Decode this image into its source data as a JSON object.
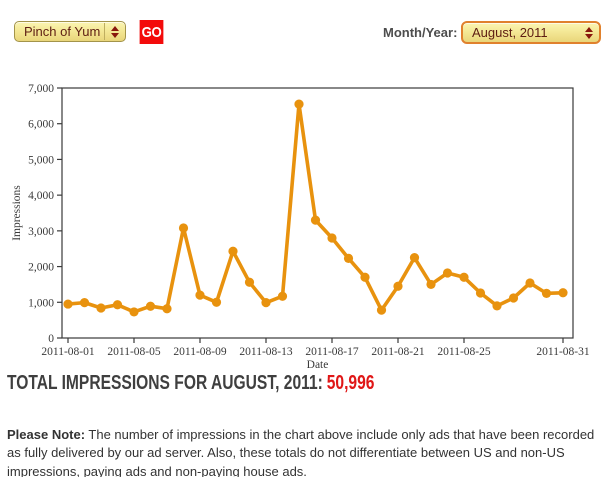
{
  "toolbar": {
    "site_select": {
      "value": "Pinch of Yum"
    },
    "go_label": "GO",
    "month_label": "Month/Year:",
    "month_select": {
      "value": "August, 2011"
    }
  },
  "chart_data": {
    "type": "line",
    "title": "",
    "xlabel": "Date",
    "ylabel": "Impressions",
    "ylim": [
      0,
      7000
    ],
    "grid": false,
    "legend": "none",
    "line_color": "#e8920e",
    "axis_color": "#3a3a3a",
    "x": [
      1,
      2,
      3,
      4,
      5,
      6,
      7,
      8,
      9,
      10,
      11,
      12,
      13,
      14,
      15,
      16,
      17,
      18,
      19,
      20,
      21,
      22,
      23,
      24,
      25,
      26,
      27,
      28,
      29,
      30,
      31
    ],
    "values": [
      950,
      990,
      840,
      930,
      730,
      890,
      820,
      3080,
      1200,
      1000,
      2430,
      1560,
      990,
      1170,
      6550,
      3300,
      2800,
      2230,
      1700,
      780,
      1450,
      2250,
      1500,
      1820,
      1700,
      1260,
      900,
      1120,
      1540,
      1250,
      1266
    ],
    "y_ticks": [
      0,
      1000,
      2000,
      3000,
      4000,
      5000,
      6000,
      7000
    ],
    "y_tick_labels": [
      "0",
      "1,000",
      "2,000",
      "3,000",
      "4,000",
      "5,000",
      "6,000",
      "7,000"
    ],
    "x_tick_days": [
      1,
      5,
      9,
      13,
      17,
      21,
      25,
      31
    ],
    "x_tick_labels": [
      "2011-08-01",
      "2011-08-05",
      "2011-08-09",
      "2011-08-13",
      "2011-08-17",
      "2011-08-21",
      "2011-08-25",
      "2011-08-31"
    ]
  },
  "summary": {
    "label": "TOTAL IMPRESSIONS FOR AUGUST, 2011:",
    "value": "50,996"
  },
  "note": {
    "bold": "Please Note:",
    "text": " The number of impressions in the chart above include only ads that have been recorded as fully delivered by our ad server. Also, these totals do not differentiate between US and non-US impressions, paying ads and non-paying house ads."
  },
  "colors": {
    "accent_orange": "#e8920e",
    "go_red": "#f30b0b",
    "total_red": "#e01717",
    "select_text": "#5e1d12",
    "select_border": "#a3944a",
    "month_select_border": "#e0812d",
    "heading_gray": "#3f3f3f"
  }
}
